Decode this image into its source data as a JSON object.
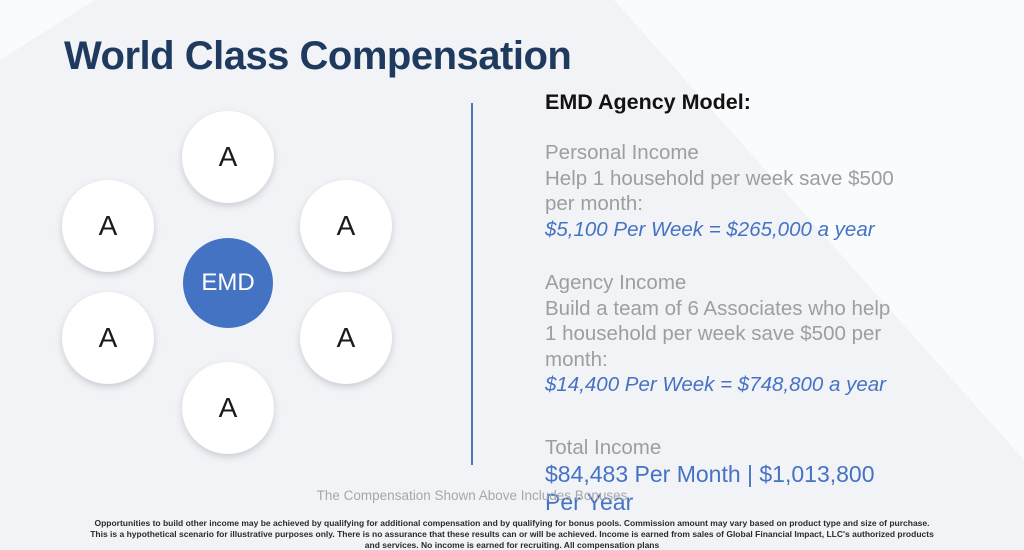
{
  "slide": {
    "title": "World Class Compensation",
    "diagram": {
      "center_label": "EMD",
      "satellite_label": "A",
      "satellite_count": 6
    },
    "panel": {
      "heading": "EMD Agency Model:",
      "sections": [
        {
          "heading": "Personal Income",
          "body": "Help 1 household per week save $500 per month:",
          "highlight": "$5,100 Per Week = $265,000 a year"
        },
        {
          "heading": "Agency Income",
          "body": "Build a team of 6 Associates who help 1 household per week save $500 per month:",
          "highlight": "$14,400 Per Week = $748,800 a year"
        },
        {
          "heading": "Total Income",
          "highlight": "$84,483 Per Month | $1,013,800 Per Year"
        }
      ]
    },
    "caption": "The Compensation Shown Above Includes Bonuses",
    "disclaimer": "Opportunities to build other income may be achieved by qualifying for additional compensation and by qualifying for bonus pools.  Commission amount may vary based on product type and size of purchase.  This is a hypothetical scenario for illustrative purposes only. There is no assurance that these results can or will be achieved. Income is earned from sales of Global Financial Impact, LLC's authorized products and services. No income is earned for recruiting. All compensation plans"
  },
  "colors": {
    "title": "#1e3a5f",
    "accent_blue": "#4573c4",
    "divider_blue": "#4a78b8",
    "text_gray": "#9d9ea2"
  }
}
